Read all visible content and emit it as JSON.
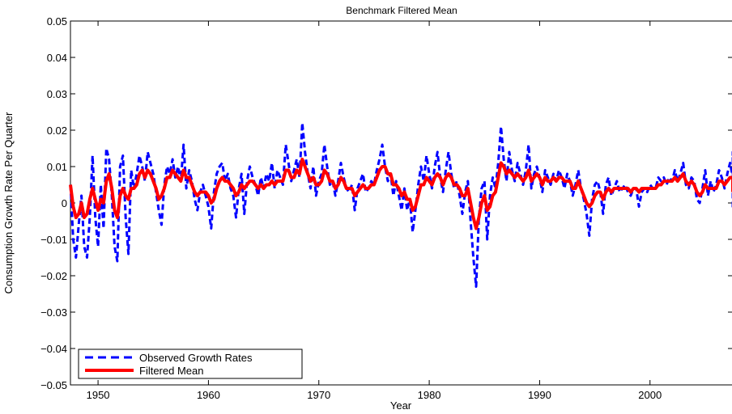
{
  "chart_data": {
    "type": "line",
    "title": "Benchmark Filtered Mean",
    "xlabel": "Year",
    "ylabel": "Consumption Growth Rate Per Quarter",
    "xlim": [
      1947.5,
      2007.5
    ],
    "ylim": [
      -0.05,
      0.05
    ],
    "xticks": [
      1950,
      1960,
      1970,
      1980,
      1990,
      2000
    ],
    "xtick_labels": [
      "1950",
      "1960",
      "1970",
      "1980",
      "1990",
      "2000"
    ],
    "yticks": [
      -0.05,
      -0.04,
      -0.03,
      -0.02,
      -0.01,
      0,
      0.01,
      0.02,
      0.03,
      0.04,
      0.05
    ],
    "ytick_labels": [
      "−0.05",
      "−0.04",
      "−0.03",
      "−0.02",
      "−0.01",
      "0",
      "0.01",
      "0.02",
      "0.03",
      "0.04",
      "0.05"
    ],
    "grid": false,
    "legend_position": "bottom-left",
    "series": [
      {
        "name": "Observed Growth Rates",
        "color": "#0000ff",
        "style": "dashed",
        "x_start": 1947.5,
        "x_step": 0.25,
        "values": [
          0.005,
          -0.01,
          -0.015,
          -0.006,
          0.002,
          -0.012,
          -0.015,
          -0.004,
          0.013,
          -0.004,
          -0.012,
          0.005,
          -0.007,
          0.015,
          0.012,
          0.002,
          -0.012,
          -0.016,
          0.01,
          0.013,
          -0.004,
          -0.014,
          0.009,
          0.004,
          0.008,
          0.013,
          0.01,
          0.006,
          0.014,
          0.011,
          0.008,
          0.003,
          -0.002,
          -0.006,
          0.005,
          0.01,
          0.008,
          0.012,
          0.007,
          0.01,
          0.006,
          0.016,
          0.004,
          0.009,
          0.006,
          0.001,
          -0.002,
          0.003,
          0.005,
          0.002,
          -0.001,
          -0.007,
          0.003,
          0.008,
          0.01,
          0.011,
          0.006,
          0.008,
          0.004,
          0.002,
          -0.004,
          0.004,
          0.008,
          -0.003,
          0.006,
          0.01,
          0.007,
          0.005,
          0.002,
          0.007,
          0.004,
          0.008,
          0.006,
          0.011,
          0.004,
          0.009,
          0.007,
          0.005,
          0.016,
          0.011,
          0.006,
          0.009,
          0.012,
          0.007,
          0.022,
          0.014,
          0.008,
          0.004,
          0.01,
          0.002,
          0.006,
          0.008,
          0.016,
          0.01,
          0.005,
          0.006,
          0.002,
          0.006,
          0.011,
          0.007,
          0.004,
          0.003,
          0.005,
          -0.002,
          0.004,
          0.006,
          0.008,
          0.003,
          0.004,
          0.006,
          0.005,
          0.009,
          0.012,
          0.016,
          0.01,
          0.006,
          0.008,
          0.002,
          0.006,
          0.002,
          -0.002,
          0.004,
          -0.002,
          0.001,
          -0.008,
          -0.002,
          0.005,
          0.01,
          0.006,
          0.013,
          0.008,
          0.004,
          0.01,
          0.014,
          0.007,
          0.003,
          0.009,
          0.014,
          0.008,
          0.004,
          0.006,
          0.002,
          -0.003,
          0.003,
          0.006,
          -0.005,
          -0.015,
          -0.023,
          -0.004,
          0.004,
          0.006,
          -0.01,
          0.002,
          0.007,
          0.004,
          0.011,
          0.021,
          0.012,
          0.006,
          0.014,
          0.009,
          0.006,
          0.011,
          0.008,
          0.005,
          0.009,
          0.016,
          0.004,
          0.008,
          0.01,
          0.007,
          0.003,
          0.009,
          0.007,
          0.005,
          0.008,
          0.006,
          0.009,
          0.007,
          0.004,
          0.008,
          0.006,
          0.002,
          0.005,
          0.009,
          0.004,
          0.001,
          -0.003,
          -0.009,
          0.001,
          0.005,
          0.006,
          0.003,
          -0.003,
          0.005,
          0.007,
          0.002,
          0.004,
          0.006,
          0.003,
          0.004,
          0.005,
          0.003,
          0.002,
          0.004,
          0.004,
          -0.001,
          0.003,
          0.004,
          0.003,
          0.005,
          0.004,
          0.004,
          0.007,
          0.006,
          0.007,
          0.005,
          0.007,
          0.006,
          0.009,
          0.006,
          0.008,
          0.011,
          0.005,
          0.004,
          0.007,
          0.006,
          0.001,
          0.0,
          0.004,
          0.009,
          0.002,
          0.006,
          0.003,
          0.005,
          0.009,
          0.007,
          0.004,
          0.008,
          0.011,
          0.007,
          0.006,
          0.004,
          0.009,
          0.003,
          0.006,
          0.014,
          0.006,
          -0.002
        ]
      },
      {
        "name": "Filtered Mean",
        "color": "#ff0000",
        "style": "solid",
        "x_start": 1947.5,
        "x_step": 0.25,
        "values": [
          0.005,
          -0.001,
          -0.004,
          -0.003,
          0.0,
          -0.004,
          -0.003,
          0.001,
          0.004,
          0.001,
          -0.002,
          0.001,
          0.0,
          0.006,
          0.008,
          0.004,
          -0.002,
          -0.004,
          0.002,
          0.004,
          0.002,
          0.001,
          0.004,
          0.004,
          0.005,
          0.008,
          0.009,
          0.007,
          0.009,
          0.008,
          0.006,
          0.004,
          0.001,
          0.002,
          0.004,
          0.007,
          0.007,
          0.009,
          0.008,
          0.007,
          0.006,
          0.009,
          0.007,
          0.007,
          0.005,
          0.003,
          0.002,
          0.003,
          0.003,
          0.003,
          0.002,
          0.0,
          0.001,
          0.004,
          0.006,
          0.007,
          0.006,
          0.006,
          0.005,
          0.004,
          0.002,
          0.003,
          0.005,
          0.004,
          0.005,
          0.006,
          0.006,
          0.005,
          0.004,
          0.005,
          0.004,
          0.005,
          0.005,
          0.006,
          0.005,
          0.006,
          0.006,
          0.006,
          0.009,
          0.009,
          0.007,
          0.007,
          0.009,
          0.008,
          0.012,
          0.01,
          0.008,
          0.006,
          0.007,
          0.005,
          0.005,
          0.006,
          0.009,
          0.008,
          0.006,
          0.006,
          0.004,
          0.005,
          0.007,
          0.006,
          0.004,
          0.004,
          0.004,
          0.002,
          0.003,
          0.004,
          0.005,
          0.004,
          0.004,
          0.005,
          0.005,
          0.007,
          0.009,
          0.01,
          0.01,
          0.008,
          0.008,
          0.005,
          0.005,
          0.004,
          0.002,
          0.003,
          0.001,
          0.001,
          -0.002,
          -0.001,
          0.002,
          0.005,
          0.005,
          0.007,
          0.006,
          0.005,
          0.007,
          0.008,
          0.007,
          0.005,
          0.007,
          0.008,
          0.007,
          0.005,
          0.005,
          0.004,
          0.002,
          0.002,
          0.004,
          0.0,
          -0.004,
          -0.007,
          -0.004,
          0.0,
          0.002,
          -0.002,
          -0.001,
          0.002,
          0.003,
          0.007,
          0.011,
          0.01,
          0.008,
          0.009,
          0.008,
          0.007,
          0.008,
          0.007,
          0.006,
          0.007,
          0.009,
          0.006,
          0.007,
          0.008,
          0.007,
          0.005,
          0.007,
          0.006,
          0.006,
          0.007,
          0.006,
          0.007,
          0.007,
          0.006,
          0.006,
          0.006,
          0.004,
          0.004,
          0.006,
          0.004,
          0.002,
          0.0,
          -0.001,
          0.0,
          0.002,
          0.003,
          0.003,
          0.001,
          0.003,
          0.004,
          0.003,
          0.004,
          0.004,
          0.004,
          0.004,
          0.004,
          0.004,
          0.003,
          0.004,
          0.004,
          0.003,
          0.004,
          0.004,
          0.004,
          0.004,
          0.004,
          0.004,
          0.005,
          0.005,
          0.006,
          0.006,
          0.006,
          0.006,
          0.007,
          0.006,
          0.007,
          0.008,
          0.006,
          0.005,
          0.006,
          0.005,
          0.003,
          0.002,
          0.003,
          0.005,
          0.004,
          0.004,
          0.004,
          0.004,
          0.006,
          0.006,
          0.005,
          0.006,
          0.007,
          0.007,
          0.006,
          0.005,
          0.006,
          0.005,
          0.005,
          0.007,
          0.006,
          0.003
        ]
      }
    ]
  }
}
